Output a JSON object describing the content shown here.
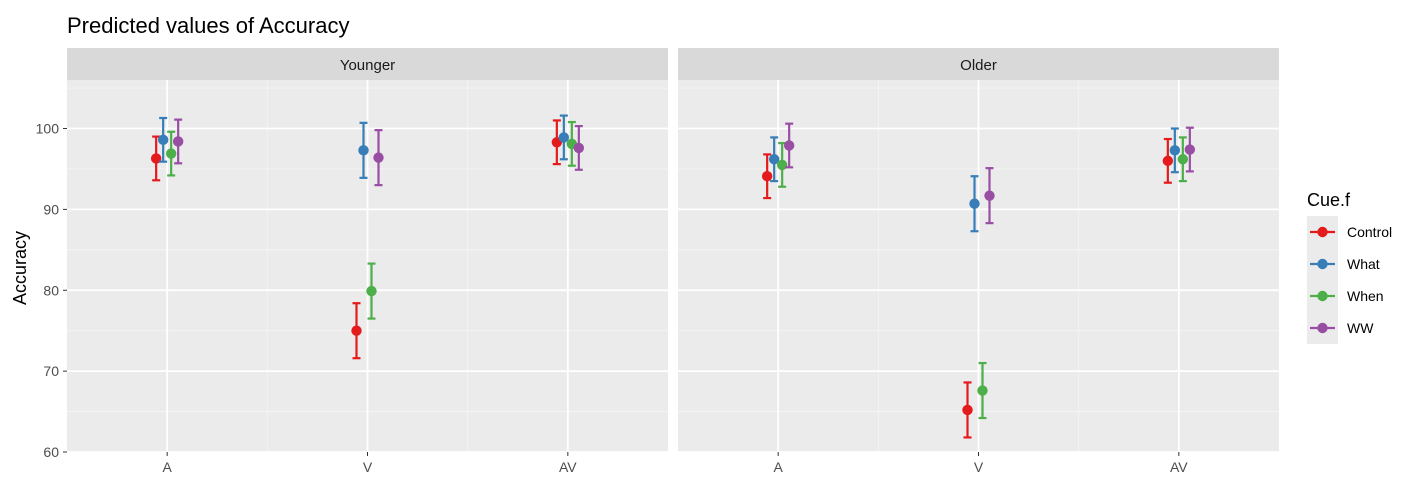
{
  "chart_data": {
    "type": "scatter",
    "title": "Predicted values of Accuracy",
    "xlabel": "",
    "ylabel": "Accuracy",
    "ylim": [
      60,
      106
    ],
    "yticks": [
      60,
      70,
      80,
      90,
      100
    ],
    "categories": [
      "A",
      "V",
      "AV"
    ],
    "facets": [
      "Younger",
      "Older"
    ],
    "legend": {
      "title": "Cue.f",
      "position": "right"
    },
    "series": [
      {
        "name": "Control",
        "color": "#E41A1C",
        "data": {
          "Younger": [
            {
              "x": "A",
              "y": 96.3,
              "low": 93.6,
              "high": 99.0
            },
            {
              "x": "V",
              "y": 75.0,
              "low": 71.6,
              "high": 78.4
            },
            {
              "x": "AV",
              "y": 98.3,
              "low": 95.6,
              "high": 101.0
            }
          ],
          "Older": [
            {
              "x": "A",
              "y": 94.1,
              "low": 91.4,
              "high": 96.8
            },
            {
              "x": "V",
              "y": 65.2,
              "low": 61.8,
              "high": 68.6
            },
            {
              "x": "AV",
              "y": 96.0,
              "low": 93.3,
              "high": 98.7
            }
          ]
        }
      },
      {
        "name": "What",
        "color": "#377EB8",
        "data": {
          "Younger": [
            {
              "x": "A",
              "y": 98.6,
              "low": 95.9,
              "high": 101.3
            },
            {
              "x": "V",
              "y": 97.3,
              "low": 93.9,
              "high": 100.7
            },
            {
              "x": "AV",
              "y": 98.9,
              "low": 96.2,
              "high": 101.6
            }
          ],
          "Older": [
            {
              "x": "A",
              "y": 96.2,
              "low": 93.5,
              "high": 98.9
            },
            {
              "x": "V",
              "y": 90.7,
              "low": 87.3,
              "high": 94.1
            },
            {
              "x": "AV",
              "y": 97.3,
              "low": 94.6,
              "high": 100.0
            }
          ]
        }
      },
      {
        "name": "When",
        "color": "#4DAF4A",
        "data": {
          "Younger": [
            {
              "x": "A",
              "y": 96.9,
              "low": 94.2,
              "high": 99.6
            },
            {
              "x": "V",
              "y": 79.9,
              "low": 76.5,
              "high": 83.3
            },
            {
              "x": "AV",
              "y": 98.1,
              "low": 95.4,
              "high": 100.8
            }
          ],
          "Older": [
            {
              "x": "A",
              "y": 95.5,
              "low": 92.8,
              "high": 98.2
            },
            {
              "x": "V",
              "y": 67.6,
              "low": 64.2,
              "high": 71.0
            },
            {
              "x": "AV",
              "y": 96.2,
              "low": 93.5,
              "high": 98.9
            }
          ]
        }
      },
      {
        "name": "WW",
        "color": "#984EA3",
        "data": {
          "Younger": [
            {
              "x": "A",
              "y": 98.4,
              "low": 95.7,
              "high": 101.1
            },
            {
              "x": "V",
              "y": 96.4,
              "low": 93.0,
              "high": 99.8
            },
            {
              "x": "AV",
              "y": 97.6,
              "low": 94.9,
              "high": 100.3
            }
          ],
          "Older": [
            {
              "x": "A",
              "y": 97.9,
              "low": 95.2,
              "high": 100.6
            },
            {
              "x": "V",
              "y": 91.7,
              "low": 88.3,
              "high": 95.1
            },
            {
              "x": "AV",
              "y": 97.4,
              "low": 94.7,
              "high": 100.1
            }
          ]
        }
      }
    ]
  }
}
